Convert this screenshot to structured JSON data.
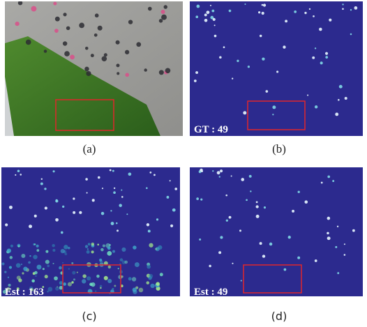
{
  "panels": [
    {
      "caption": "(a)"
    },
    {
      "caption": "(b)",
      "label": "GT : 49"
    },
    {
      "caption": "(c)",
      "label": "Est : 163"
    },
    {
      "caption": "(d)",
      "label": "Est : 49"
    }
  ]
}
